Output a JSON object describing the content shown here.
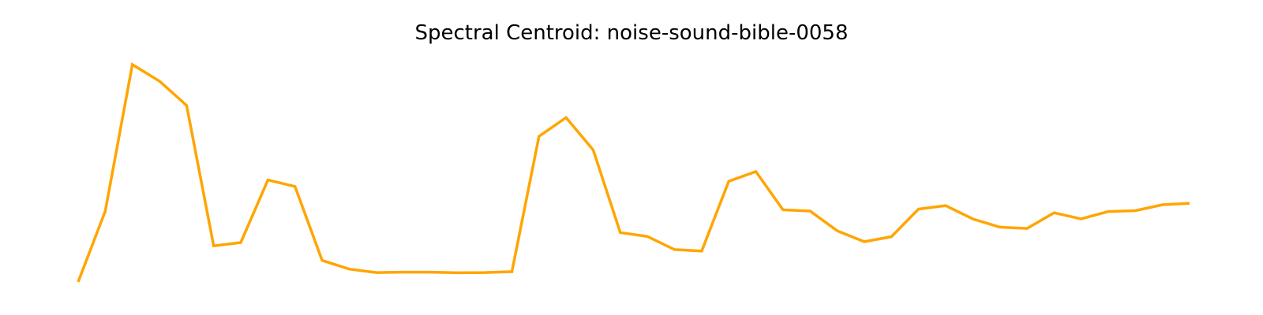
{
  "chart_data": {
    "type": "line",
    "title": "Spectral Centroid: noise-sound-bible-0058",
    "xlabel": "",
    "ylabel": "",
    "axes_visible": false,
    "grid": false,
    "legend": "none",
    "x": [
      0,
      1,
      2,
      3,
      4,
      5,
      6,
      7,
      8,
      9,
      10,
      11,
      12,
      13,
      14,
      15,
      16,
      17,
      18,
      19,
      20,
      21,
      22,
      23,
      24,
      25,
      26,
      27,
      28,
      29,
      30,
      31,
      32,
      33,
      34,
      35,
      36,
      37,
      38,
      39,
      40,
      41
    ],
    "series": [
      {
        "color": "#FFA500",
        "values": [
          0.0,
          0.325,
          1.0,
          0.924,
          0.812,
          0.166,
          0.181,
          0.469,
          0.439,
          0.099,
          0.059,
          0.043,
          0.045,
          0.045,
          0.042,
          0.043,
          0.047,
          0.67,
          0.756,
          0.607,
          0.227,
          0.209,
          0.149,
          0.142,
          0.463,
          0.508,
          0.332,
          0.326,
          0.235,
          0.185,
          0.208,
          0.335,
          0.351,
          0.29,
          0.252,
          0.246,
          0.318,
          0.29,
          0.324,
          0.328,
          0.355,
          0.362
        ]
      }
    ],
    "ylim": [
      0,
      1
    ]
  }
}
